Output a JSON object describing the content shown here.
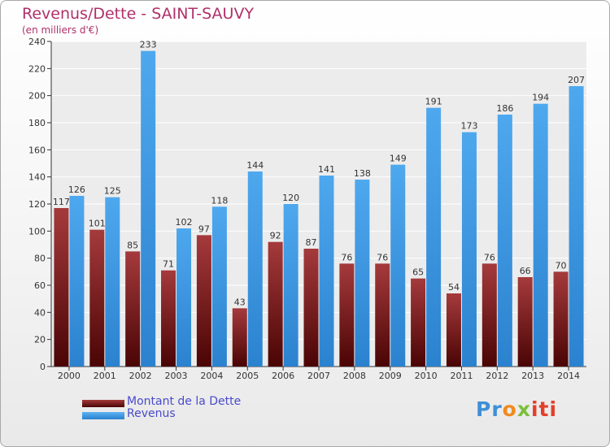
{
  "chart_data": {
    "type": "bar",
    "title": "Revenus/Dette - SAINT-SAUVY",
    "subtitle": "(en milliers d'€)",
    "categories": [
      "2000",
      "2001",
      "2002",
      "2003",
      "2004",
      "2005",
      "2006",
      "2007",
      "2008",
      "2009",
      "2010",
      "2011",
      "2012",
      "2013",
      "2014"
    ],
    "series": [
      {
        "name": "Montant de la Dette",
        "color": "#7a1416",
        "values": [
          117,
          101,
          85,
          71,
          97,
          43,
          92,
          87,
          76,
          76,
          65,
          54,
          76,
          66,
          70
        ]
      },
      {
        "name": "Revenus",
        "color": "#3d9de6",
        "values": [
          126,
          125,
          233,
          102,
          118,
          144,
          120,
          141,
          138,
          149,
          191,
          173,
          186,
          194,
          207
        ]
      }
    ],
    "ylim": [
      0,
      240
    ],
    "yticks": [
      0,
      20,
      40,
      60,
      80,
      100,
      120,
      140,
      160,
      180,
      200,
      220,
      240
    ],
    "grid": true,
    "legend_position": "bottom-left"
  },
  "logo": {
    "parts": [
      "Pr",
      "o",
      "x",
      "iti"
    ]
  }
}
